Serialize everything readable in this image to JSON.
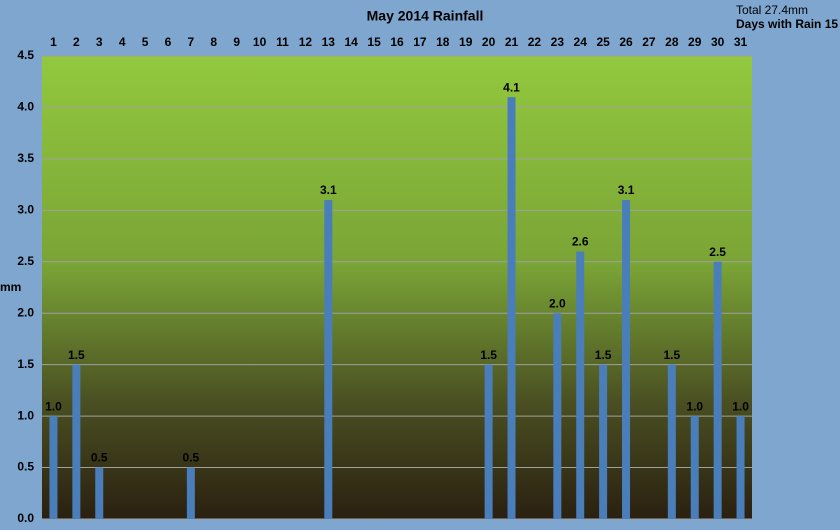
{
  "chart_data": {
    "type": "bar",
    "title": "May 2014 Rainfall",
    "annotations": [
      "Total 27.4mm",
      "Days with Rain 15"
    ],
    "y_label": "mm",
    "categories": [
      "1",
      "2",
      "3",
      "4",
      "5",
      "6",
      "7",
      "8",
      "9",
      "10",
      "11",
      "12",
      "13",
      "14",
      "15",
      "16",
      "17",
      "18",
      "19",
      "20",
      "21",
      "22",
      "23",
      "24",
      "25",
      "26",
      "27",
      "28",
      "29",
      "30",
      "31"
    ],
    "values": [
      1.0,
      1.5,
      0.5,
      0,
      0,
      0,
      0.5,
      0,
      0,
      0,
      0,
      0,
      3.1,
      0,
      0,
      0,
      0,
      0,
      0,
      1.5,
      4.1,
      0,
      2.0,
      2.6,
      1.5,
      3.1,
      0,
      1.5,
      1.0,
      2.5,
      1.0
    ],
    "value_labels": [
      "1.0",
      "1.5",
      "0.5",
      null,
      null,
      null,
      "0.5",
      null,
      null,
      null,
      null,
      null,
      "3.1",
      null,
      null,
      null,
      null,
      null,
      null,
      "1.5",
      "4.1",
      null,
      "2.0",
      "2.6",
      "1.5",
      "3.1",
      null,
      "1.5",
      "1.0",
      "2.5",
      "1.0"
    ],
    "color": "#4a7ebb",
    "ylim": [
      0,
      4.5
    ],
    "yticks": [
      {
        "value": 0,
        "label": "0.0"
      },
      {
        "value": 0.5,
        "label": "0.5"
      },
      {
        "value": 1,
        "label": "1.0"
      },
      {
        "value": 1.5,
        "label": "1.5"
      },
      {
        "value": 2,
        "label": "2.0"
      },
      {
        "value": 2.5,
        "label": "2.5"
      },
      {
        "value": 3,
        "label": "3.0"
      },
      {
        "value": 3.5,
        "label": "3.5"
      },
      {
        "value": 4,
        "label": "4.0"
      },
      {
        "value": 4.5,
        "label": "4.5"
      }
    ],
    "grid": true
  }
}
